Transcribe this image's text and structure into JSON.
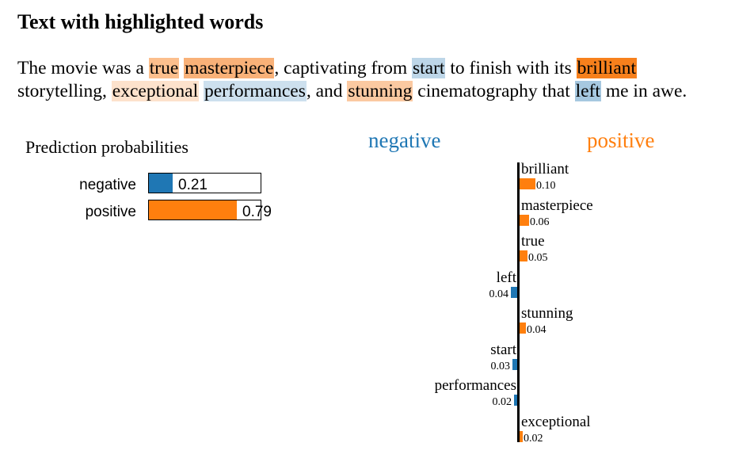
{
  "page_title": "Text with highlighted words",
  "text_tokens": [
    {
      "t": "The movie was a ",
      "hl": null
    },
    {
      "t": "true",
      "hl": "#fcbf8d"
    },
    {
      "t": " ",
      "hl": null
    },
    {
      "t": "masterpiece",
      "hl": "#f9b178"
    },
    {
      "t": ", captivating from ",
      "hl": null
    },
    {
      "t": "start",
      "hl": "#bdd6e8"
    },
    {
      "t": " to finish with its ",
      "hl": null
    },
    {
      "t": "brilliant",
      "hl": "#f7801c"
    },
    {
      "t": "\n",
      "hl": null
    },
    {
      "t": "storytelling, ",
      "hl": null
    },
    {
      "t": "exceptional",
      "hl": "#fde2cc"
    },
    {
      "t": " ",
      "hl": null
    },
    {
      "t": "performances",
      "hl": "#cde0ee"
    },
    {
      "t": ", and ",
      "hl": null
    },
    {
      "t": "stunning",
      "hl": "#fbc9a1"
    },
    {
      "t": " cinematography that ",
      "hl": null
    },
    {
      "t": "left",
      "hl": "#a6c8e0"
    },
    {
      "t": " me in awe.",
      "hl": null
    }
  ],
  "colors": {
    "negative": "#1f77b4",
    "positive": "#ff7f0e"
  },
  "chart_data": [
    {
      "type": "bar",
      "title": "Prediction probabilities",
      "categories": [
        "negative",
        "positive"
      ],
      "values": [
        0.21,
        0.79
      ],
      "value_labels": [
        "0.21",
        "0.79"
      ],
      "xlim": [
        0,
        1
      ]
    },
    {
      "type": "bar",
      "orientation": "horizontal",
      "class_labels": {
        "negative": "negative",
        "positive": "positive"
      },
      "words": [
        "brilliant",
        "masterpiece",
        "true",
        "left",
        "stunning",
        "start",
        "performances",
        "exceptional"
      ],
      "weights": [
        0.1,
        0.06,
        0.05,
        -0.04,
        0.04,
        -0.03,
        -0.02,
        0.02
      ],
      "value_labels": [
        "0.10",
        "0.06",
        "0.05",
        "0.04",
        "0.04",
        "0.03",
        "0.02",
        "0.02"
      ]
    }
  ]
}
